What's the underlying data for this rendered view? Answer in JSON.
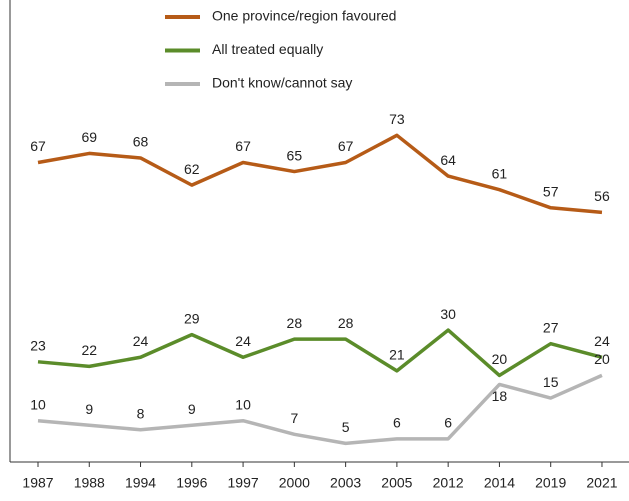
{
  "chart_data": {
    "type": "line",
    "categories": [
      "1987",
      "1988",
      "1994",
      "1996",
      "1997",
      "2000",
      "2003",
      "2005",
      "2012",
      "2014",
      "2019",
      "2021"
    ],
    "series": [
      {
        "name": "One province/region favoured",
        "color": "#b65b17",
        "values": [
          67,
          69,
          68,
          62,
          67,
          65,
          67,
          73,
          64,
          61,
          57,
          56
        ]
      },
      {
        "name": "All treated equally",
        "color": "#5b8c2a",
        "values": [
          23,
          22,
          24,
          29,
          24,
          28,
          28,
          21,
          30,
          20,
          27,
          24
        ]
      },
      {
        "name": "Don't know/cannot say",
        "color": "#b5b5b5",
        "values": [
          10,
          9,
          8,
          9,
          10,
          7,
          5,
          6,
          6,
          18,
          15,
          20
        ]
      }
    ],
    "ylim": [
      0,
      100
    ]
  }
}
